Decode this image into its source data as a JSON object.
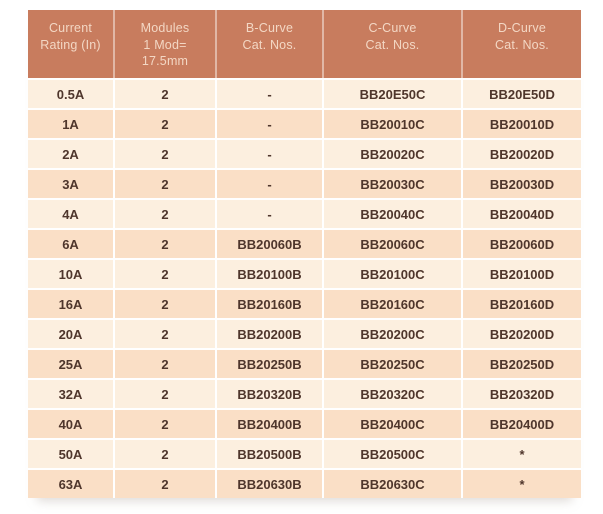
{
  "colors": {
    "header-bg": "#c87c5e",
    "header-text": "#f3d7c4",
    "row-light": "#fcefdf",
    "row-dark": "#fadfc6",
    "body-text": "#4f362c",
    "grid-line": "#ffffff",
    "page-bg": "#ffffff"
  },
  "table": {
    "columns": [
      {
        "label": "Current\nRating (In)"
      },
      {
        "label": "Modules\n1 Mod=\n17.5mm"
      },
      {
        "label": "B-Curve\nCat. Nos."
      },
      {
        "label": "C-Curve\nCat. Nos."
      },
      {
        "label": "D-Curve\nCat. Nos."
      }
    ],
    "rows": [
      [
        "0.5A",
        "2",
        "-",
        "BB20E50C",
        "BB20E50D"
      ],
      [
        "1A",
        "2",
        "-",
        "BB20010C",
        "BB20010D"
      ],
      [
        "2A",
        "2",
        "-",
        "BB20020C",
        "BB20020D"
      ],
      [
        "3A",
        "2",
        "-",
        "BB20030C",
        "BB20030D"
      ],
      [
        "4A",
        "2",
        "-",
        "BB20040C",
        "BB20040D"
      ],
      [
        "6A",
        "2",
        "BB20060B",
        "BB20060C",
        "BB20060D"
      ],
      [
        "10A",
        "2",
        "BB20100B",
        "BB20100C",
        "BB20100D"
      ],
      [
        "16A",
        "2",
        "BB20160B",
        "BB20160C",
        "BB20160D"
      ],
      [
        "20A",
        "2",
        "BB20200B",
        "BB20200C",
        "BB20200D"
      ],
      [
        "25A",
        "2",
        "BB20250B",
        "BB20250C",
        "BB20250D"
      ],
      [
        "32A",
        "2",
        "BB20320B",
        "BB20320C",
        "BB20320D"
      ],
      [
        "40A",
        "2",
        "BB20400B",
        "BB20400C",
        "BB20400D"
      ],
      [
        "50A",
        "2",
        "BB20500B",
        "BB20500C",
        "*"
      ],
      [
        "63A",
        "2",
        "BB20630B",
        "BB20630C",
        "*"
      ]
    ]
  }
}
